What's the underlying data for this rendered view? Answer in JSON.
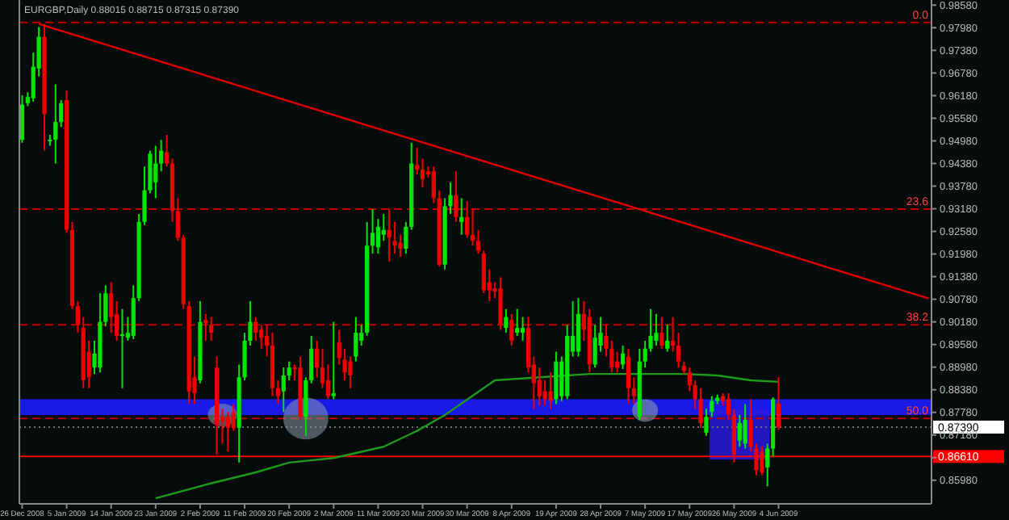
{
  "chart_data": {
    "type": "candlestick",
    "title": "EURGBP,Daily 0.88015 0.88715 0.87315 0.87390",
    "categories": [
      "26 Dec 2008",
      null,
      null,
      null,
      null,
      null,
      null,
      null,
      "5 Jan 2009",
      null,
      null,
      null,
      null,
      null,
      null,
      null,
      "14 Jan 2009",
      null,
      null,
      null,
      null,
      null,
      null,
      null,
      "23 Jan 2009",
      null,
      null,
      null,
      null,
      null,
      null,
      null,
      "2 Feb 2009",
      null,
      null,
      null,
      null,
      null,
      null,
      null,
      "11 Feb 2009",
      null,
      null,
      null,
      null,
      null,
      null,
      null,
      "20 Feb 2009",
      null,
      null,
      null,
      null,
      null,
      null,
      null,
      "2 Mar 2009",
      null,
      null,
      null,
      null,
      null,
      null,
      null,
      "11 Mar 2009",
      null,
      null,
      null,
      null,
      null,
      null,
      null,
      "20 Mar 2009",
      null,
      null,
      null,
      null,
      null,
      null,
      null,
      "30 Mar 2009",
      null,
      null,
      null,
      null,
      null,
      null,
      null,
      "8 Apr 2009",
      null,
      null,
      null,
      null,
      null,
      null,
      null,
      "19 Apr 2009",
      null,
      null,
      null,
      null,
      null,
      null,
      null,
      "28 Apr 2009",
      null,
      null,
      null,
      null,
      null,
      null,
      null,
      "7 May 2009",
      null,
      null,
      null,
      null,
      null,
      null,
      null,
      "17 May 2009",
      null,
      null,
      null,
      null,
      null,
      null,
      null,
      "26 May 2009",
      null,
      null,
      null,
      null,
      null,
      null,
      null,
      "4 Jun 2009",
      null,
      null,
      null,
      null,
      null,
      null,
      null,
      null,
      null,
      null,
      null,
      null,
      null,
      null,
      null,
      null,
      null,
      null,
      null,
      null,
      null,
      null,
      null,
      null,
      null,
      null,
      null
    ],
    "ohlc": [
      [
        0.9501,
        0.9619,
        0.9493,
        0.9594
      ],
      [
        0.9598,
        0.9627,
        0.959,
        0.9615
      ],
      [
        0.9611,
        0.9732,
        0.9602,
        0.9695
      ],
      [
        0.969,
        0.98,
        0.9669,
        0.9774
      ],
      [
        0.9774,
        0.9808,
        0.9472,
        0.9569
      ],
      [
        0.9497,
        0.9514,
        0.9485,
        0.9501
      ],
      [
        0.9501,
        0.9648,
        0.9438,
        0.9548
      ],
      [
        0.9548,
        0.9606,
        0.9535,
        0.9598
      ],
      [
        0.9606,
        0.9632,
        0.9254,
        0.9262
      ],
      [
        0.9262,
        0.9283,
        0.9052,
        0.906
      ],
      [
        0.906,
        0.9073,
        0.8989,
        0.901
      ],
      [
        0.9002,
        0.9031,
        0.8842,
        0.8863
      ],
      [
        0.8939,
        0.8968,
        0.8842,
        0.8871
      ],
      [
        0.8897,
        0.8968,
        0.888,
        0.8934
      ],
      [
        0.8897,
        0.9094,
        0.8884,
        0.9018
      ],
      [
        0.9018,
        0.9115,
        0.9006,
        0.9094
      ],
      [
        0.9094,
        0.9123,
        0.8989,
        0.9031
      ],
      [
        0.9039,
        0.9073,
        0.8968,
        0.8981
      ],
      [
        0.8981,
        0.9052,
        0.8842,
        0.8985
      ],
      [
        0.8976,
        0.9031,
        0.8968,
        0.8989
      ],
      [
        0.8981,
        0.9115,
        0.8972,
        0.9081
      ],
      [
        0.9081,
        0.9304,
        0.9073,
        0.9283
      ],
      [
        0.9283,
        0.943,
        0.9275,
        0.9367
      ],
      [
        0.9367,
        0.9472,
        0.9359,
        0.9464
      ],
      [
        0.9388,
        0.9485,
        0.9346,
        0.9438
      ],
      [
        0.9438,
        0.9501,
        0.9417,
        0.9472
      ],
      [
        0.9468,
        0.9514,
        0.943,
        0.9438
      ],
      [
        0.9438,
        0.9451,
        0.9283,
        0.9312
      ],
      [
        0.9312,
        0.9346,
        0.9233,
        0.9241
      ],
      [
        0.9241,
        0.9249,
        0.9052,
        0.9065
      ],
      [
        0.906,
        0.9073,
        0.88,
        0.8834
      ],
      [
        0.8871,
        0.8926,
        0.88,
        0.8829
      ],
      [
        0.8863,
        0.9073,
        0.8855,
        0.9018
      ],
      [
        0.9023,
        0.9039,
        0.8968,
        0.9014
      ],
      [
        0.901,
        0.9031,
        0.8968,
        0.8989
      ],
      [
        0.8897,
        0.8926,
        0.8666,
        0.8745
      ],
      [
        0.8766,
        0.8787,
        0.8695,
        0.8754
      ],
      [
        0.8766,
        0.8779,
        0.8674,
        0.8737
      ],
      [
        0.8779,
        0.88,
        0.8729,
        0.8737
      ],
      [
        0.8737,
        0.8905,
        0.8645,
        0.8871
      ],
      [
        0.8871,
        0.8989,
        0.8863,
        0.8968
      ],
      [
        0.8968,
        0.9073,
        0.8955,
        0.9018
      ],
      [
        0.9018,
        0.9031,
        0.8968,
        0.8989
      ],
      [
        0.8997,
        0.901,
        0.8947,
        0.8976
      ],
      [
        0.8981,
        0.901,
        0.8926,
        0.8955
      ],
      [
        0.8955,
        0.8989,
        0.8821,
        0.8842
      ],
      [
        0.8842,
        0.8863,
        0.88,
        0.8821
      ],
      [
        0.8834,
        0.8897,
        0.8779,
        0.8876
      ],
      [
        0.8876,
        0.8913,
        0.8863,
        0.8897
      ],
      [
        0.8897,
        0.8905,
        0.8863,
        0.8892
      ],
      [
        0.8897,
        0.8926,
        0.8758,
        0.8766
      ],
      [
        0.8766,
        0.8871,
        0.8716,
        0.8863
      ],
      [
        0.8863,
        0.8981,
        0.8855,
        0.8947
      ],
      [
        0.8947,
        0.8968,
        0.8871,
        0.8897
      ],
      [
        0.8897,
        0.8947,
        0.8842,
        0.8855
      ],
      [
        0.8863,
        0.8905,
        0.8813,
        0.8821
      ],
      [
        0.8821,
        0.9018,
        0.8813,
        0.8829
      ],
      [
        0.8964,
        0.8997,
        0.8905,
        0.8922
      ],
      [
        0.8918,
        0.8947,
        0.8863,
        0.8884
      ],
      [
        0.8913,
        0.8926,
        0.8842,
        0.8876
      ],
      [
        0.8926,
        0.9031,
        0.8913,
        0.8989
      ],
      [
        0.8968,
        0.901,
        0.8955,
        0.8989
      ],
      [
        0.8989,
        0.9283,
        0.8981,
        0.922
      ],
      [
        0.922,
        0.9317,
        0.9199,
        0.9254
      ],
      [
        0.9216,
        0.9291,
        0.9199,
        0.927
      ],
      [
        0.9249,
        0.9304,
        0.9233,
        0.9262
      ],
      [
        0.9262,
        0.9317,
        0.9178,
        0.9241
      ],
      [
        0.9233,
        0.9283,
        0.9199,
        0.922
      ],
      [
        0.9228,
        0.9249,
        0.9191,
        0.9212
      ],
      [
        0.9212,
        0.9283,
        0.9199,
        0.927
      ],
      [
        0.927,
        0.9493,
        0.9262,
        0.9438
      ],
      [
        0.9434,
        0.948,
        0.9409,
        0.9422
      ],
      [
        0.9422,
        0.9451,
        0.9375,
        0.9396
      ],
      [
        0.9417,
        0.943,
        0.9401,
        0.9409
      ],
      [
        0.9417,
        0.943,
        0.9333,
        0.9346
      ],
      [
        0.9346,
        0.9367,
        0.9165,
        0.917
      ],
      [
        0.917,
        0.9346,
        0.9157,
        0.9325
      ],
      [
        0.9325,
        0.9388,
        0.9304,
        0.9354
      ],
      [
        0.9354,
        0.9417,
        0.9283,
        0.9296
      ],
      [
        0.9283,
        0.9346,
        0.9249,
        0.9296
      ],
      [
        0.9296,
        0.9338,
        0.9241,
        0.9249
      ],
      [
        0.9249,
        0.9317,
        0.922,
        0.9233
      ],
      [
        0.9233,
        0.9262,
        0.9199,
        0.9207
      ],
      [
        0.9199,
        0.9207,
        0.9094,
        0.9102
      ],
      [
        0.9123,
        0.9157,
        0.9073,
        0.9102
      ],
      [
        0.9107,
        0.9123,
        0.9081,
        0.9098
      ],
      [
        0.9107,
        0.9136,
        0.8997,
        0.901
      ],
      [
        0.9002,
        0.9052,
        0.8989,
        0.9031
      ],
      [
        0.9023,
        0.9039,
        0.8955,
        0.8968
      ],
      [
        0.8989,
        0.9052,
        0.8981,
        0.9002
      ],
      [
        0.8989,
        0.9031,
        0.8968,
        0.9002
      ],
      [
        0.9002,
        0.9031,
        0.8884,
        0.8897
      ],
      [
        0.8905,
        0.8926,
        0.8787,
        0.8855
      ],
      [
        0.8863,
        0.8897,
        0.8796,
        0.8821
      ],
      [
        0.8834,
        0.8863,
        0.8796,
        0.8813
      ],
      [
        0.8834,
        0.8884,
        0.8787,
        0.8808
      ],
      [
        0.8813,
        0.8939,
        0.88,
        0.8913
      ],
      [
        0.8821,
        0.8926,
        0.8808,
        0.8913
      ],
      [
        0.8821,
        0.901,
        0.8813,
        0.8981
      ],
      [
        0.8939,
        0.9073,
        0.8926,
        0.8981
      ],
      [
        0.8939,
        0.9081,
        0.8926,
        0.9039
      ],
      [
        0.9039,
        0.9073,
        0.8968,
        0.8997
      ],
      [
        0.9031,
        0.9052,
        0.8884,
        0.8905
      ],
      [
        0.8905,
        0.901,
        0.8897,
        0.8976
      ],
      [
        0.8955,
        0.9031,
        0.8939,
        0.8989
      ],
      [
        0.8981,
        0.901,
        0.8926,
        0.8947
      ],
      [
        0.8947,
        0.8968,
        0.8884,
        0.8897
      ],
      [
        0.8913,
        0.8939,
        0.8884,
        0.8897
      ],
      [
        0.8905,
        0.8955,
        0.8893,
        0.8934
      ],
      [
        0.8926,
        0.8947,
        0.88,
        0.8842
      ],
      [
        0.8842,
        0.8871,
        0.88,
        0.8821
      ],
      [
        0.8766,
        0.8947,
        0.8758,
        0.8913
      ],
      [
        0.8913,
        0.8968,
        0.8897,
        0.8947
      ],
      [
        0.8947,
        0.9052,
        0.8939,
        0.8981
      ],
      [
        0.8968,
        0.9039,
        0.8955,
        0.8989
      ],
      [
        0.8989,
        0.9031,
        0.8947,
        0.8955
      ],
      [
        0.8947,
        0.901,
        0.8939,
        0.8968
      ],
      [
        0.8968,
        0.9031,
        0.8939,
        0.8955
      ],
      [
        0.8955,
        0.8989,
        0.8897,
        0.8913
      ],
      [
        0.8901,
        0.8913,
        0.888,
        0.8888
      ],
      [
        0.8884,
        0.8897,
        0.8834,
        0.885
      ],
      [
        0.885,
        0.8863,
        0.8787,
        0.8813
      ],
      [
        0.8813,
        0.8842,
        0.8737,
        0.875
      ],
      [
        0.8724,
        0.8787,
        0.8716,
        0.8766
      ],
      [
        0.8779,
        0.8821,
        0.8766,
        0.8808
      ],
      [
        0.8808,
        0.8825,
        0.88,
        0.8817
      ],
      [
        0.8821,
        0.8829,
        0.8796,
        0.8808
      ],
      [
        0.8813,
        0.8829,
        0.8758,
        0.8771
      ],
      [
        0.8771,
        0.8787,
        0.8645,
        0.8666
      ],
      [
        0.8703,
        0.8771,
        0.8687,
        0.875
      ],
      [
        0.8695,
        0.88,
        0.8682,
        0.8758
      ],
      [
        0.8758,
        0.8813,
        0.8674,
        0.8687
      ],
      [
        0.8682,
        0.8695,
        0.8611,
        0.8624
      ],
      [
        0.8674,
        0.8687,
        0.8611,
        0.8619
      ],
      [
        0.8632,
        0.8695,
        0.8582,
        0.8682
      ],
      [
        0.8682,
        0.8818,
        0.8661,
        0.8813
      ],
      [
        0.88015,
        0.88715,
        0.87315,
        0.8739
      ],
      null,
      null,
      null,
      null,
      null,
      null,
      null,
      null,
      null,
      null,
      null,
      null,
      null,
      null,
      null,
      null,
      null,
      null,
      null,
      null,
      null,
      null,
      null,
      null,
      null,
      null,
      null
    ],
    "colors": [
      "#00e600",
      "#00e600",
      "#00e600",
      "#00e600",
      "#f00000",
      "#00e600",
      "#00e600",
      "#00e600",
      "#f00000",
      "#f00000",
      "#f00000",
      "#f00000",
      "#f00000",
      "#00e600",
      "#00e600",
      "#00e600",
      "#f00000",
      "#f00000",
      "#00e600",
      "#00e600",
      "#00e600",
      "#00e600",
      "#00e600",
      "#00e600",
      "#00e600",
      "#00e600",
      "#f00000",
      "#f00000",
      "#f00000",
      "#f00000",
      "#f00000",
      "#f00000",
      "#00e600",
      "#f00000",
      "#f00000",
      "#f00000",
      "#f00000",
      "#f00000",
      "#f00000",
      "#00e600",
      "#00e600",
      "#00e600",
      "#f00000",
      "#f00000",
      "#f00000",
      "#f00000",
      "#f00000",
      "#00e600",
      "#00e600",
      "#f00000",
      "#f00000",
      "#00e600",
      "#00e600",
      "#f00000",
      "#f00000",
      "#f00000",
      "#00e600",
      "#f00000",
      "#f00000",
      "#f00000",
      "#00e600",
      "#00e600",
      "#00e600",
      "#00e600",
      "#00e600",
      "#00e600",
      "#f00000",
      "#f00000",
      "#f00000",
      "#00e600",
      "#00e600",
      "#f00000",
      "#f00000",
      "#f00000",
      "#f00000",
      "#f00000",
      "#00e600",
      "#00e600",
      "#f00000",
      "#00e600",
      "#f00000",
      "#f00000",
      "#f00000",
      "#f00000",
      "#f00000",
      "#f00000",
      "#f00000",
      "#00e600",
      "#f00000",
      "#00e600",
      "#00e600",
      "#f00000",
      "#f00000",
      "#f00000",
      "#f00000",
      "#f00000",
      "#00e600",
      "#00e600",
      "#00e600",
      "#00e600",
      "#00e600",
      "#f00000",
      "#f00000",
      "#00e600",
      "#00e600",
      "#f00000",
      "#f00000",
      "#f00000",
      "#00e600",
      "#f00000",
      "#f00000",
      "#00e600",
      "#00e600",
      "#00e600",
      "#00e600",
      "#f00000",
      "#00e600",
      "#f00000",
      "#f00000",
      "#f00000",
      "#f00000",
      "#f00000",
      "#f00000",
      "#00e600",
      "#00e600",
      "#00e600",
      "#f00000",
      "#f00000",
      "#f00000",
      "#00e600",
      "#00e600",
      "#f00000",
      "#f00000",
      "#f00000",
      "#00e600",
      "#00e600",
      "#f00000",
      null,
      null,
      null,
      null,
      null,
      null,
      null,
      null,
      null,
      null,
      null,
      null,
      null,
      null,
      null,
      null,
      null,
      null,
      null,
      null,
      null,
      null,
      null,
      null,
      null,
      null,
      null
    ],
    "series": [
      {
        "type": "line",
        "color": "#1f9a1f",
        "values": [
          null,
          null,
          null,
          null,
          null,
          null,
          null,
          null,
          null,
          null,
          null,
          null,
          null,
          null,
          null,
          null,
          null,
          null,
          null,
          null,
          null,
          null,
          null,
          null,
          0.855,
          null,
          null,
          null,
          null,
          null,
          null,
          null,
          null,
          null,
          0.859,
          null,
          null,
          null,
          null,
          null,
          null,
          null,
          0.8619,
          null,
          null,
          null,
          null,
          null,
          0.8645,
          null,
          null,
          null,
          null,
          null,
          null,
          null,
          0.8657,
          null,
          null,
          null,
          null,
          null,
          null,
          null,
          null,
          0.8687,
          null,
          null,
          null,
          null,
          null,
          0.8729,
          null,
          null,
          null,
          null,
          0.8771,
          null,
          null,
          null,
          null,
          null,
          null,
          null,
          null,
          0.8863,
          null,
          null,
          null,
          null,
          null,
          null,
          null,
          0.8871,
          null,
          null,
          null,
          null,
          null,
          null,
          null,
          null,
          0.888,
          null,
          null,
          null,
          null,
          null,
          null,
          null,
          null,
          0.888,
          null,
          null,
          null,
          null,
          null,
          null,
          null,
          0.888,
          null,
          null,
          null,
          null,
          null,
          0.8876,
          null,
          null,
          null,
          null,
          null,
          0.8863,
          null,
          null,
          null,
          null,
          0.8859,
          null,
          null,
          null,
          null,
          null,
          null,
          null,
          null,
          null,
          null,
          null,
          null,
          null,
          null,
          null,
          null,
          null,
          null,
          null,
          null,
          null,
          null,
          null,
          null,
          null,
          null,
          null
        ]
      },
      {
        "type": "line",
        "color": "#e00000",
        "values": [
          null,
          null,
          null,
          0.9808,
          null,
          null,
          null,
          null,
          null,
          null,
          null,
          null,
          null,
          null,
          null,
          null,
          null,
          null,
          null,
          null,
          null,
          null,
          null,
          null,
          null,
          null,
          null,
          null,
          null,
          null,
          null,
          null,
          null,
          null,
          null,
          null,
          null,
          null,
          null,
          null,
          null,
          null,
          null,
          null,
          null,
          null,
          null,
          null,
          null,
          null,
          null,
          null,
          null,
          null,
          null,
          null,
          null,
          null,
          null,
          null,
          null,
          null,
          null,
          null,
          null,
          null,
          null,
          null,
          null,
          null,
          null,
          null,
          null,
          null,
          null,
          null,
          null,
          null,
          null,
          null,
          null,
          null,
          null,
          null,
          null,
          null,
          null,
          null,
          null,
          null,
          null,
          null,
          null,
          null,
          null,
          null,
          null,
          null,
          null,
          null,
          null,
          null,
          null,
          null,
          null,
          null,
          null,
          null,
          null,
          null,
          null,
          null,
          null,
          null,
          null,
          null,
          null,
          null,
          null,
          null,
          null,
          null,
          null,
          null,
          null,
          null,
          null,
          null,
          null,
          null,
          null,
          null,
          null,
          null,
          null,
          null,
          null,
          null,
          null,
          null,
          null,
          null,
          null,
          null,
          null,
          null,
          null,
          null,
          null,
          null,
          null,
          null,
          null,
          null,
          null,
          null,
          null,
          null,
          null,
          null,
          null,
          null,
          null,
          0.908
        ]
      }
    ],
    "ylim": [
      0.8544,
      0.9863
    ],
    "yticks": [
      {
        "value": 0.9858,
        "label": "0.98580"
      },
      {
        "value": 0.9798,
        "label": "0.97980"
      },
      {
        "value": 0.9738,
        "label": "0.97380"
      },
      {
        "value": 0.9678,
        "label": "0.96780"
      },
      {
        "value": 0.9618,
        "label": "0.96180"
      },
      {
        "value": 0.9558,
        "label": "0.95580"
      },
      {
        "value": 0.9498,
        "label": "0.94980"
      },
      {
        "value": 0.9438,
        "label": "0.94380"
      },
      {
        "value": 0.9378,
        "label": "0.93780"
      },
      {
        "value": 0.9318,
        "label": "0.93180"
      },
      {
        "value": 0.9258,
        "label": "0.92580"
      },
      {
        "value": 0.9198,
        "label": "0.91980"
      },
      {
        "value": 0.9138,
        "label": "0.91380"
      },
      {
        "value": 0.9078,
        "label": "0.90780"
      },
      {
        "value": 0.9018,
        "label": "0.90180"
      },
      {
        "value": 0.8958,
        "label": "0.89580"
      },
      {
        "value": 0.8898,
        "label": "0.88980"
      },
      {
        "value": 0.8838,
        "label": "0.88380"
      },
      {
        "value": 0.8778,
        "label": "0.87780"
      },
      {
        "value": 0.8718,
        "label": "0.87180"
      },
      {
        "value": 0.8658,
        "label": null
      },
      {
        "value": 0.8598,
        "label": "0.85980"
      }
    ],
    "ref_lines": [
      {
        "axis": "y",
        "value": 0.9812,
        "color": "#c00000",
        "line_style": "dashed"
      },
      {
        "axis": "y",
        "value": 0.9317,
        "color": "#c00000",
        "line_style": "dashed"
      },
      {
        "axis": "y",
        "value": 0.901,
        "color": "#c00000",
        "line_style": "dashed"
      },
      {
        "axis": "y",
        "value": 0.8762,
        "color": "#c00000",
        "line_style": "dashed"
      },
      {
        "axis": "y",
        "value": 0.8739,
        "label": "0.87390",
        "color": "#707070",
        "line_style": "dotted"
      },
      {
        "axis": "y",
        "value": 0.8661,
        "label": "0.86610",
        "color": "#ff0000",
        "line_style": "solid"
      }
    ],
    "annotations": [
      {
        "text": "0.0",
        "y": 0.9812
      },
      {
        "text": "23.6",
        "y": 0.9317
      },
      {
        "text": "38.2",
        "y": 0.901
      },
      {
        "text": "50.0",
        "y": 0.8762
      }
    ],
    "bands": [
      {
        "axis": "y",
        "from": 0.8771,
        "to": 0.8813,
        "color": "#1a1ae6"
      }
    ]
  }
}
